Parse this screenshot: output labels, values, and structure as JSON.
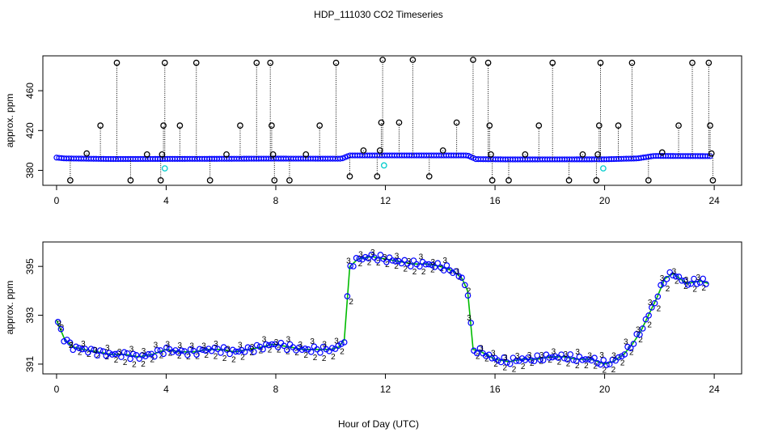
{
  "chart_data": {
    "title": "HDP_111030  CO2 Timeseries",
    "xlabel": "Hour of Day (UTC)",
    "colors": {
      "outline": "#000000",
      "marker": "#0000ff",
      "flag_cyan": "#00cccc",
      "flag_green": "#00bb00",
      "spike": "#000000"
    },
    "panels": [
      {
        "type": "scatter",
        "ylabel": "approx. ppm",
        "xlim": [
          -0.5,
          25.0
        ],
        "ylim": [
          365,
          495
        ],
        "xticks": [
          0,
          4,
          8,
          12,
          16,
          20,
          24
        ],
        "xtick_labels": [
          "0",
          "4",
          "8",
          "12",
          "16",
          "20",
          "24"
        ],
        "yticks": [
          380,
          420,
          460
        ],
        "ytick_labels": [
          "380",
          "420",
          "460"
        ],
        "baseline": [
          [
            0.0,
            392.8
          ],
          [
            0.3,
            392.0
          ],
          [
            2.0,
            391.4
          ],
          [
            4.0,
            391.5
          ],
          [
            6.0,
            391.6
          ],
          [
            8.0,
            391.8
          ],
          [
            10.4,
            391.7
          ],
          [
            10.7,
            395.0
          ],
          [
            15.0,
            395.0
          ],
          [
            15.3,
            391.3
          ],
          [
            16.5,
            391.0
          ],
          [
            20.0,
            391.1
          ],
          [
            20.5,
            391.5
          ],
          [
            21.2,
            392.0
          ],
          [
            21.8,
            394.5
          ],
          [
            23.8,
            394.3
          ]
        ],
        "spikes": [
          {
            "x": 0.5,
            "y": 370
          },
          {
            "x": 1.1,
            "y": 397
          },
          {
            "x": 1.6,
            "y": 425
          },
          {
            "x": 2.2,
            "y": 488
          },
          {
            "x": 2.7,
            "y": 370
          },
          {
            "x": 3.3,
            "y": 396
          },
          {
            "x": 3.8,
            "y": 370
          },
          {
            "x": 3.85,
            "y": 396
          },
          {
            "x": 3.9,
            "y": 425
          },
          {
            "x": 3.95,
            "y": 488
          },
          {
            "x": 4.5,
            "y": 425
          },
          {
            "x": 5.1,
            "y": 488
          },
          {
            "x": 5.6,
            "y": 370
          },
          {
            "x": 6.2,
            "y": 396
          },
          {
            "x": 6.7,
            "y": 425
          },
          {
            "x": 7.3,
            "y": 488
          },
          {
            "x": 7.8,
            "y": 488
          },
          {
            "x": 7.85,
            "y": 425
          },
          {
            "x": 7.9,
            "y": 396
          },
          {
            "x": 7.95,
            "y": 370
          },
          {
            "x": 8.5,
            "y": 370
          },
          {
            "x": 9.1,
            "y": 396
          },
          {
            "x": 9.6,
            "y": 425
          },
          {
            "x": 10.2,
            "y": 488
          },
          {
            "x": 10.7,
            "y": 374
          },
          {
            "x": 11.2,
            "y": 400
          },
          {
            "x": 11.7,
            "y": 374
          },
          {
            "x": 11.8,
            "y": 400
          },
          {
            "x": 11.85,
            "y": 428
          },
          {
            "x": 11.9,
            "y": 491
          },
          {
            "x": 12.5,
            "y": 428
          },
          {
            "x": 13.0,
            "y": 491
          },
          {
            "x": 13.6,
            "y": 374
          },
          {
            "x": 14.1,
            "y": 400
          },
          {
            "x": 14.6,
            "y": 428
          },
          {
            "x": 15.2,
            "y": 491
          },
          {
            "x": 15.75,
            "y": 488
          },
          {
            "x": 15.8,
            "y": 425
          },
          {
            "x": 15.85,
            "y": 396
          },
          {
            "x": 15.9,
            "y": 370
          },
          {
            "x": 16.5,
            "y": 370
          },
          {
            "x": 17.1,
            "y": 396
          },
          {
            "x": 17.6,
            "y": 425
          },
          {
            "x": 18.1,
            "y": 488
          },
          {
            "x": 18.7,
            "y": 370
          },
          {
            "x": 19.2,
            "y": 396
          },
          {
            "x": 19.7,
            "y": 370
          },
          {
            "x": 19.75,
            "y": 396
          },
          {
            "x": 19.8,
            "y": 425
          },
          {
            "x": 19.85,
            "y": 488
          },
          {
            "x": 20.5,
            "y": 425
          },
          {
            "x": 21.0,
            "y": 488
          },
          {
            "x": 21.6,
            "y": 370
          },
          {
            "x": 22.1,
            "y": 398
          },
          {
            "x": 22.7,
            "y": 425
          },
          {
            "x": 23.2,
            "y": 488
          },
          {
            "x": 23.8,
            "y": 488
          },
          {
            "x": 23.85,
            "y": 425
          },
          {
            "x": 23.9,
            "y": 397
          },
          {
            "x": 23.95,
            "y": 370
          }
        ],
        "cyan_flags": [
          {
            "x": 3.95,
            "y": 382
          },
          {
            "x": 11.95,
            "y": 385
          },
          {
            "x": 19.95,
            "y": 382
          }
        ]
      },
      {
        "type": "scatter",
        "ylabel": "approx. ppm",
        "xlim": [
          -0.5,
          25.0
        ],
        "ylim": [
          390.6,
          396.0
        ],
        "xticks": [
          0,
          4,
          8,
          12,
          16,
          20,
          24
        ],
        "xtick_labels": [
          "0",
          "4",
          "8",
          "12",
          "16",
          "20",
          "24"
        ],
        "yticks": [
          391,
          393,
          395
        ],
        "ytick_labels": [
          "391",
          "393",
          "395"
        ],
        "series": [
          {
            "name": "trace",
            "x": [
              0.0,
              0.3,
              0.6,
              1.0,
              1.5,
              2.0,
              2.5,
              3.0,
              3.5,
              4.0,
              4.5,
              5.0,
              5.5,
              6.0,
              6.5,
              7.0,
              7.5,
              7.8,
              8.0,
              8.5,
              9.0,
              9.5,
              10.0,
              10.3,
              10.5,
              10.7,
              11.0,
              11.5,
              12.0,
              12.5,
              13.0,
              13.5,
              14.0,
              14.5,
              14.8,
              15.0,
              15.2,
              15.5,
              16.0,
              16.5,
              17.0,
              17.5,
              18.0,
              18.5,
              19.0,
              19.5,
              20.0,
              20.3,
              20.7,
              21.0,
              21.3,
              21.6,
              21.9,
              22.2,
              22.5,
              23.0,
              23.5,
              23.8
            ],
            "y": [
              392.8,
              392.0,
              391.7,
              391.6,
              391.5,
              391.4,
              391.4,
              391.3,
              391.4,
              391.6,
              391.5,
              391.5,
              391.6,
              391.6,
              391.5,
              391.6,
              391.7,
              391.8,
              391.8,
              391.7,
              391.6,
              391.6,
              391.6,
              391.7,
              392.0,
              395.0,
              395.3,
              395.4,
              395.3,
              395.2,
              395.1,
              395.1,
              395.0,
              394.8,
              394.5,
              394.0,
              391.6,
              391.5,
              391.2,
              391.1,
              391.2,
              391.2,
              391.3,
              391.3,
              391.2,
              391.2,
              391.0,
              391.1,
              391.4,
              391.8,
              392.3,
              393.0,
              393.7,
              394.5,
              394.7,
              394.3,
              394.4,
              394.3
            ]
          }
        ]
      }
    ]
  }
}
